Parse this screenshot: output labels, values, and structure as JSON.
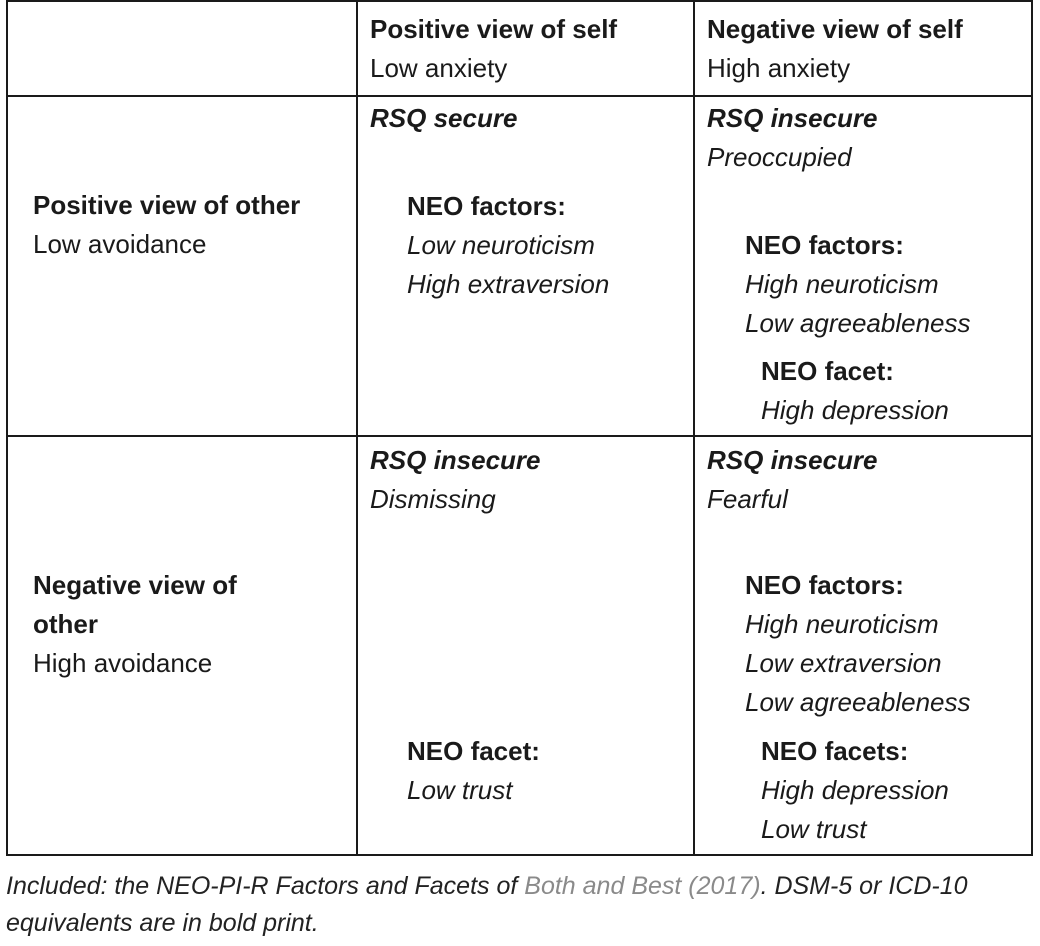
{
  "header": {
    "col1_title": "Positive view of self",
    "col1_sub": "Low anxiety",
    "col2_title": "Negative view of self",
    "col2_sub": "High anxiety"
  },
  "rows": [
    {
      "title": "Positive view of other",
      "sub": "Low avoidance",
      "cells": [
        {
          "rsq": "RSQ secure",
          "factors_label": "NEO factors:",
          "factors": [
            "Low neuroticism",
            "High extraversion"
          ]
        },
        {
          "rsq": "RSQ insecure",
          "style": "Preoccupied",
          "factors_label": "NEO factors:",
          "factors": [
            "High neuroticism",
            "Low agreeableness"
          ],
          "facets_label": "NEO facet:",
          "facets": [
            "High depression"
          ]
        }
      ]
    },
    {
      "title_line1": "Negative view of",
      "title_line2": "other",
      "sub": "High avoidance",
      "cells": [
        {
          "rsq": "RSQ insecure",
          "style": "Dismissing",
          "facets_label": "NEO facet:",
          "facets": [
            "Low trust"
          ]
        },
        {
          "rsq": "RSQ insecure",
          "style": "Fearful",
          "factors_label": "NEO factors:",
          "factors": [
            "High neuroticism",
            "Low extraversion",
            "Low agreeableness"
          ],
          "facets_label": "NEO facets:",
          "facets": [
            "High depression",
            "Low trust"
          ]
        }
      ]
    }
  ],
  "caption": {
    "prefix": "Included: the NEO-PI-R Factors and Facets of ",
    "reference": "Both and Best (2017)",
    "suffix": ". DSM-5 or ICD-10 equivalents are in bold print."
  }
}
